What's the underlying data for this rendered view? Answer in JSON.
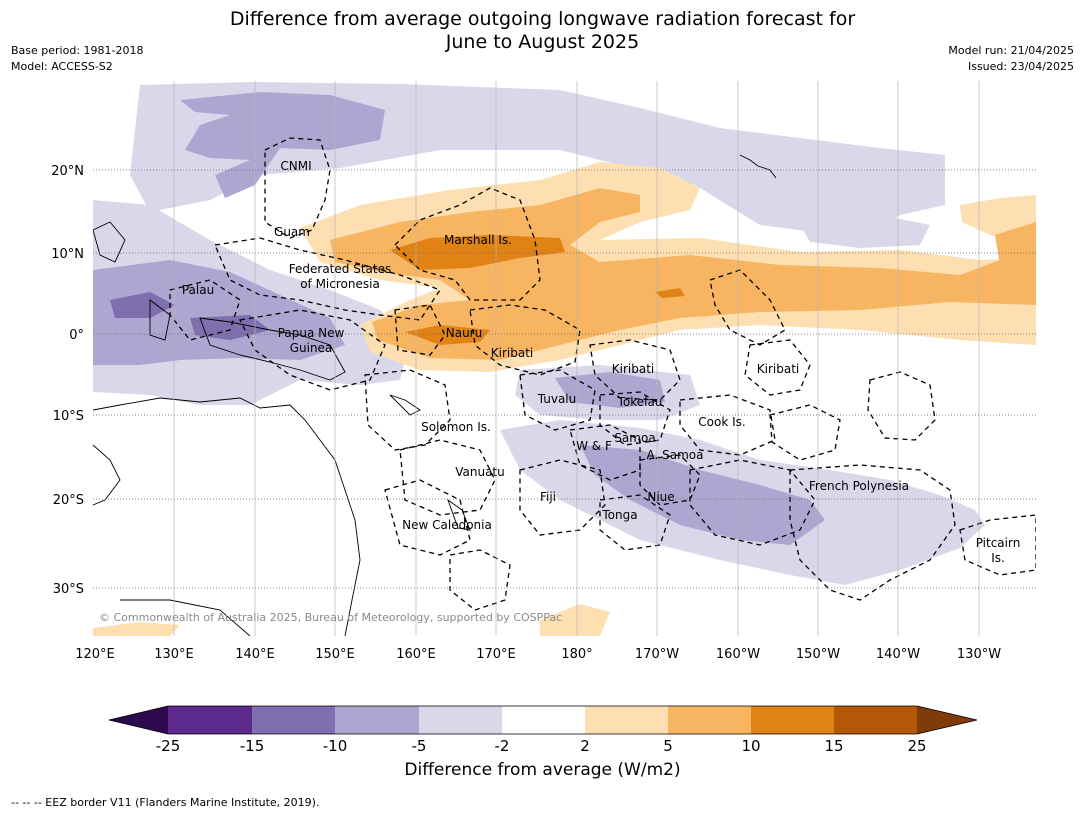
{
  "header": {
    "title_line1": "Difference from average outgoing longwave radiation forecast for",
    "title_line2": "June to August 2025",
    "base_period": "Base period: 1981-2018",
    "model": "Model: ACCESS-S2",
    "model_run": "Model run: 21/04/2025",
    "issued": "Issued: 23/04/2025"
  },
  "axes": {
    "longitude_ticks": [
      "120°E",
      "130°E",
      "140°E",
      "150°E",
      "160°E",
      "170°E",
      "180°",
      "170°W",
      "160°W",
      "150°W",
      "140°W",
      "130°W"
    ],
    "latitude_ticks": [
      "20°N",
      "10°N",
      "0°",
      "10°S",
      "20°S",
      "30°S"
    ]
  },
  "regions": {
    "cnmi": "CNMI",
    "guam": "Guam",
    "marshall": "Marshall Is.",
    "fsm_line1": "Federated States",
    "fsm_line2": "of Micronesia",
    "palau": "Palau",
    "png_line1": "Papua New",
    "png_line2": "Guinea",
    "nauru": "Nauru",
    "kiribati_west": "Kiribati",
    "kiribati_central": "Kiribati",
    "kiribati_east": "Kiribati",
    "tuvalu": "Tuvalu",
    "tokelau": "Tokelau",
    "cook": "Cook Is.",
    "solomon": "Solomon Is.",
    "samoa": "Samoa",
    "wf": "W & F",
    "asamoa": "A. Samoa",
    "vanuatu": "Vanuatu",
    "fiji": "Fiji",
    "niue": "Niue",
    "tonga": "Tonga",
    "new_caledonia": "New Caledonia",
    "french_polynesia": "French Polynesia",
    "pitcairn_line1": "Pitcairn",
    "pitcairn_line2": "Is."
  },
  "copyright": "© Commonwealth of Australia 2025, Bureau of Meteorology, supported by COSPPac",
  "colorbar": {
    "title": "Difference from average (W/m2)",
    "tick_labels": [
      "-25",
      "-15",
      "-10",
      "-5",
      "-2",
      "2",
      "5",
      "10",
      "15",
      "25"
    ],
    "colors": [
      "#2d0a4e",
      "#5b2a8c",
      "#7f6fae",
      "#ada6d0",
      "#d8d8ea",
      "#ffffff",
      "#fddfb2",
      "#f8b561",
      "#e08214",
      "#b35806",
      "#7f3b08"
    ]
  },
  "footer": "--  --  -- EEZ border V11 (Flanders Marine Institute, 2019)."
}
